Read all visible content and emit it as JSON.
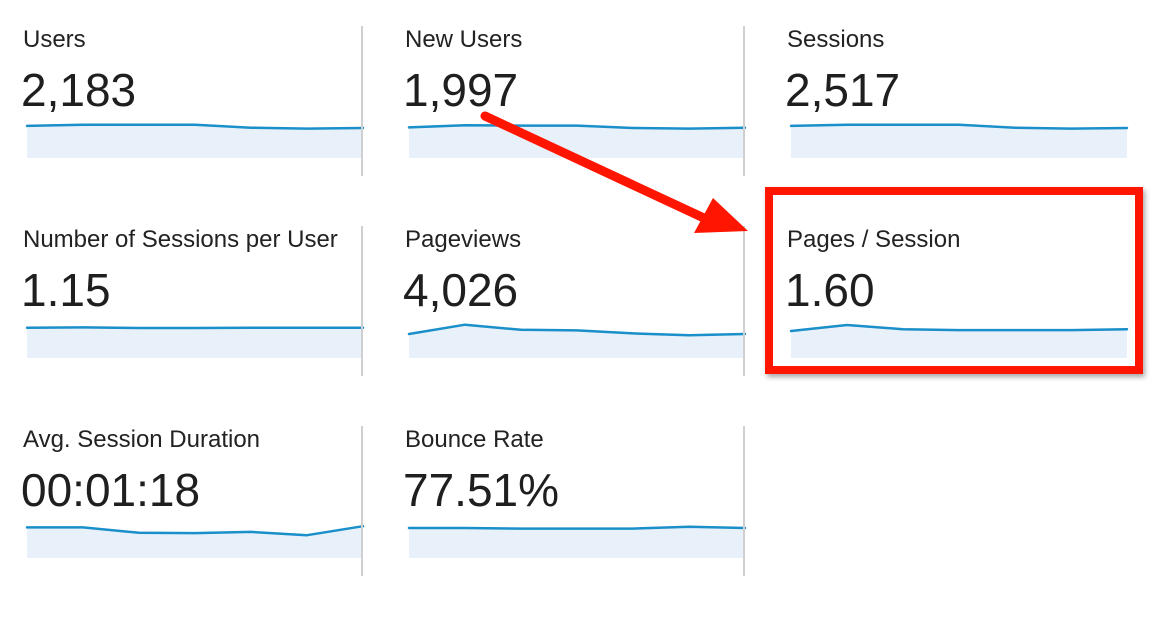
{
  "colors": {
    "line": "#1a8fc9",
    "fill": "#e8f1fa",
    "highlight": "#ff1500",
    "divider": "#cfcfcf"
  },
  "metrics": [
    {
      "label": "Users",
      "value": "2,183",
      "trend": [
        0.65,
        0.45,
        0.45,
        0.45,
        0.95,
        1.1,
        1.0
      ]
    },
    {
      "label": "New Users",
      "value": "1,997",
      "trend": [
        0.9,
        0.55,
        0.6,
        0.6,
        1.0,
        1.1,
        0.95
      ]
    },
    {
      "label": "Sessions",
      "value": "2,517",
      "trend": [
        0.65,
        0.45,
        0.45,
        0.45,
        0.95,
        1.1,
        1.0
      ]
    },
    {
      "label": "Number of Sessions per User",
      "value": "1.15",
      "trend": [
        0.95,
        0.9,
        1.0,
        1.0,
        0.95,
        0.95,
        0.95
      ]
    },
    {
      "label": "Pageviews",
      "value": "4,026",
      "trend": [
        2.0,
        0.45,
        1.3,
        1.4,
        1.9,
        2.2,
        2.0
      ]
    },
    {
      "label": "Pages / Session",
      "value": "1.60",
      "trend": [
        1.5,
        0.5,
        1.2,
        1.35,
        1.35,
        1.35,
        1.2
      ]
    },
    {
      "label": "Avg. Session Duration",
      "value": "00:01:18",
      "trend": [
        0.9,
        0.9,
        1.8,
        1.85,
        1.65,
        2.2,
        0.7
      ]
    },
    {
      "label": "Bounce Rate",
      "value": "77.51%",
      "trend": [
        1.0,
        1.0,
        1.1,
        1.1,
        1.1,
        0.8,
        1.0
      ]
    }
  ],
  "annotation": {
    "arrow_icon": "red-arrow-icon",
    "highlighted_metric": "Pages / Session"
  }
}
